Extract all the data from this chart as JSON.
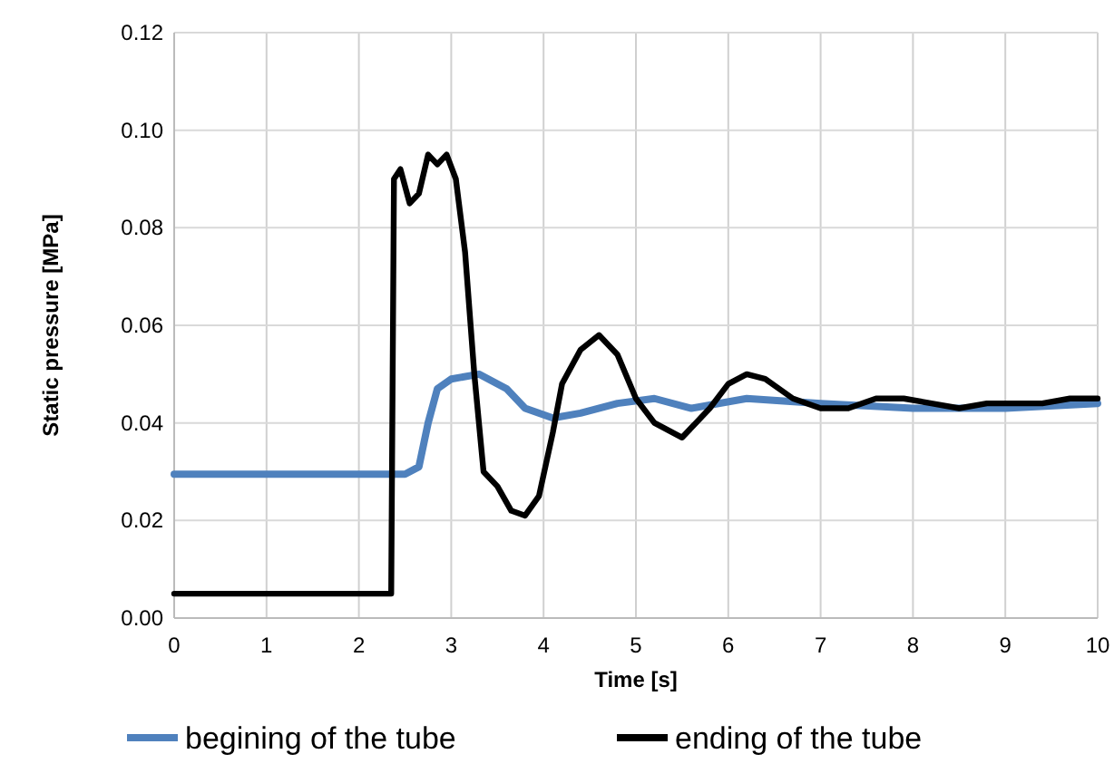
{
  "chart_data": {
    "type": "line",
    "xlabel": "Time [s]",
    "ylabel": "Static pressure [MPa]",
    "xlim": [
      0,
      10
    ],
    "xticks": [
      0,
      1,
      2,
      3,
      4,
      5,
      6,
      7,
      8,
      9,
      10
    ],
    "ylim": [
      0,
      0.12
    ],
    "yticks": [
      {
        "value": 0,
        "label": "0.00"
      },
      {
        "value": 0.02,
        "label": "0.02"
      },
      {
        "value": 0.04,
        "label": "0.04"
      },
      {
        "value": 0.06,
        "label": "0.06"
      },
      {
        "value": 0.08,
        "label": "0.08"
      },
      {
        "value": 0.1,
        "label": "0.10"
      },
      {
        "value": 0.12,
        "label": "0.12"
      }
    ],
    "grid": true,
    "legend": "bottom",
    "marker": "none",
    "line_style": "solid",
    "series": [
      {
        "name": "begining of the tube",
        "color": "#4f81bd",
        "x": [
          0,
          0.5,
          1,
          1.5,
          2,
          2.5,
          2.65,
          2.75,
          2.85,
          3.0,
          3.3,
          3.6,
          3.8,
          4.1,
          4.4,
          4.8,
          5.2,
          5.6,
          6.2,
          7,
          8,
          9,
          10
        ],
        "values": [
          0.0295,
          0.0295,
          0.0295,
          0.0295,
          0.0295,
          0.0295,
          0.031,
          0.04,
          0.047,
          0.049,
          0.05,
          0.047,
          0.043,
          0.041,
          0.042,
          0.044,
          0.045,
          0.043,
          0.045,
          0.044,
          0.043,
          0.043,
          0.044
        ]
      },
      {
        "name": "ending of the tube",
        "color": "#000000",
        "x": [
          0,
          0.5,
          1,
          1.5,
          2,
          2.35,
          2.38,
          2.45,
          2.55,
          2.65,
          2.75,
          2.85,
          2.95,
          3.05,
          3.15,
          3.25,
          3.35,
          3.5,
          3.65,
          3.8,
          3.95,
          4.1,
          4.2,
          4.4,
          4.6,
          4.8,
          5.0,
          5.2,
          5.5,
          5.8,
          6.0,
          6.2,
          6.4,
          6.7,
          7.0,
          7.3,
          7.6,
          7.9,
          8.2,
          8.5,
          8.8,
          9.1,
          9.4,
          9.7,
          10
        ],
        "values": [
          0.005,
          0.005,
          0.005,
          0.005,
          0.005,
          0.005,
          0.09,
          0.092,
          0.085,
          0.087,
          0.095,
          0.093,
          0.095,
          0.09,
          0.075,
          0.05,
          0.03,
          0.027,
          0.022,
          0.021,
          0.025,
          0.038,
          0.048,
          0.055,
          0.058,
          0.054,
          0.045,
          0.04,
          0.037,
          0.043,
          0.048,
          0.05,
          0.049,
          0.045,
          0.043,
          0.043,
          0.045,
          0.045,
          0.044,
          0.043,
          0.044,
          0.044,
          0.044,
          0.045,
          0.045
        ]
      }
    ]
  }
}
